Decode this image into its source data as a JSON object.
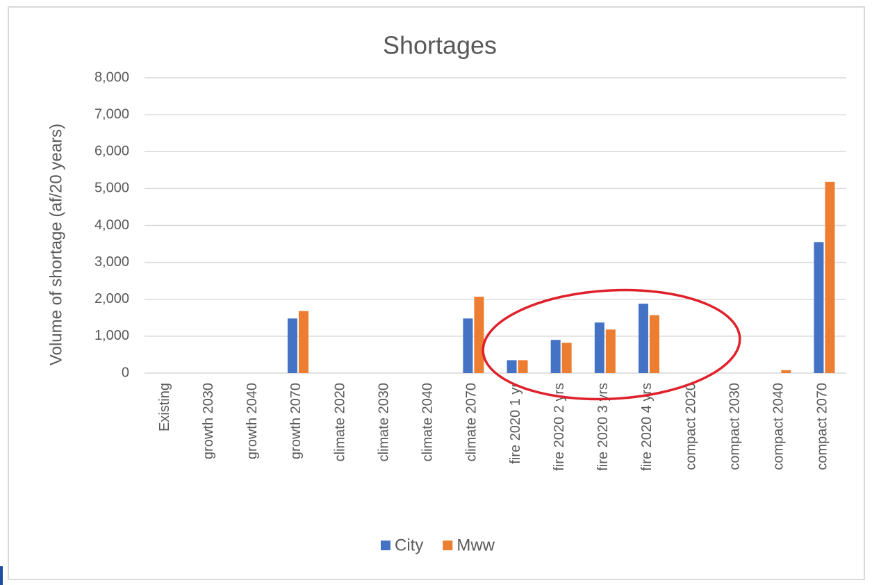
{
  "chart_data": {
    "type": "bar",
    "title": "Shortages",
    "y_label": "Volume of shortage (af/20 years)",
    "categories": [
      "Existing",
      "growth 2030",
      "growth 2040",
      "growth 2070",
      "climate 2020",
      "climate 2030",
      "climate 2040",
      "climate 2070",
      "fire 2020 1 yr",
      "fire 2020 2 yrs",
      "fire 2020 3 yrs",
      "fire 2020 4 yrs",
      "compact 2020",
      "compact 2030",
      "compact 2040",
      "compact 2070"
    ],
    "series": [
      {
        "name": "City",
        "color": "#4472c4",
        "values": [
          0,
          0,
          0,
          1480,
          0,
          0,
          0,
          1480,
          350,
          900,
          1370,
          1880,
          0,
          0,
          0,
          3550
        ]
      },
      {
        "name": "Mww",
        "color": "#ed7d31",
        "values": [
          0,
          0,
          0,
          1680,
          0,
          0,
          0,
          2070,
          350,
          820,
          1180,
          1570,
          0,
          0,
          80,
          5180
        ]
      }
    ],
    "ylim": [
      0,
      8000
    ],
    "yticks": [
      0,
      {
        "value": 1000,
        "label": "1,000"
      },
      {
        "value": 2000,
        "label": "2,000"
      },
      {
        "value": 3000,
        "label": "3,000"
      },
      {
        "value": 4000,
        "label": "4,000"
      },
      {
        "value": 5000,
        "label": "5,000"
      },
      {
        "value": 6000,
        "label": "6,000"
      },
      {
        "value": 7000,
        "label": "7,000"
      },
      {
        "value": 8000,
        "label": "8,000"
      }
    ],
    "grid": true,
    "legend": "bottom"
  }
}
